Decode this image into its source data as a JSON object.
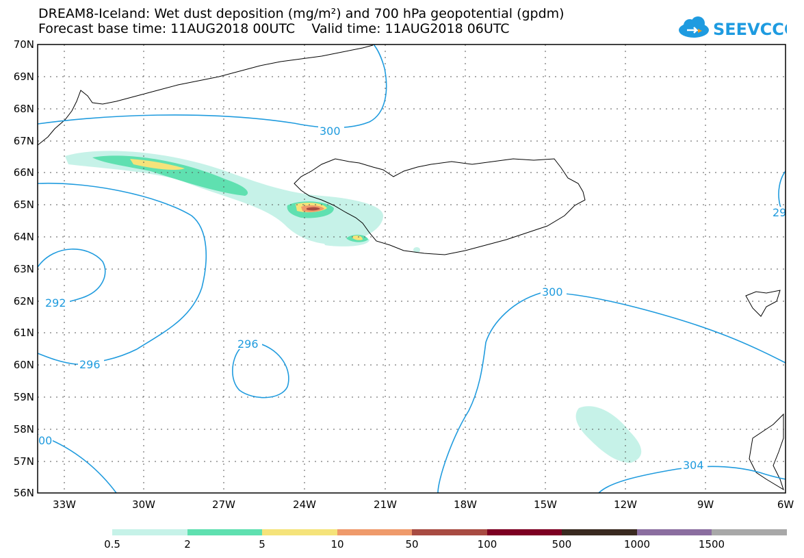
{
  "header": {
    "title_line1": "DREAM8-Iceland: Wet dust deposition (mg/m²) and 700 hPa geopotential (gpdm)",
    "title_line2": "Forecast base time: 11AUG2018 00UTC    Valid time: 11AUG2018 06UTC"
  },
  "logo": {
    "text": "SEEVCCC",
    "color": "#1e9be0",
    "icon": "cloud-icon"
  },
  "map": {
    "lat_labels": [
      "70N",
      "69N",
      "68N",
      "67N",
      "66N",
      "65N",
      "64N",
      "63N",
      "62N",
      "61N",
      "60N",
      "59N",
      "58N",
      "57N",
      "56N"
    ],
    "lon_labels": [
      "33W",
      "30W",
      "27W",
      "24W",
      "21W",
      "18W",
      "15W",
      "12W",
      "9W",
      "6W"
    ],
    "contour_color": "#1f9bde",
    "contour_labels": [
      "300",
      "292",
      "296",
      "296",
      "300",
      "304",
      "00",
      "29"
    ]
  },
  "colorbar": {
    "colors": [
      "#c6f2e8",
      "#5fe0b0",
      "#f5e37a",
      "#ef9a6b",
      "#a84b42",
      "#7d0022",
      "#3a2a20",
      "#8b6ea0",
      "#a8a8a8"
    ],
    "labels": [
      "0.5",
      "2",
      "5",
      "10",
      "50",
      "100",
      "500",
      "1000",
      "1500"
    ]
  }
}
